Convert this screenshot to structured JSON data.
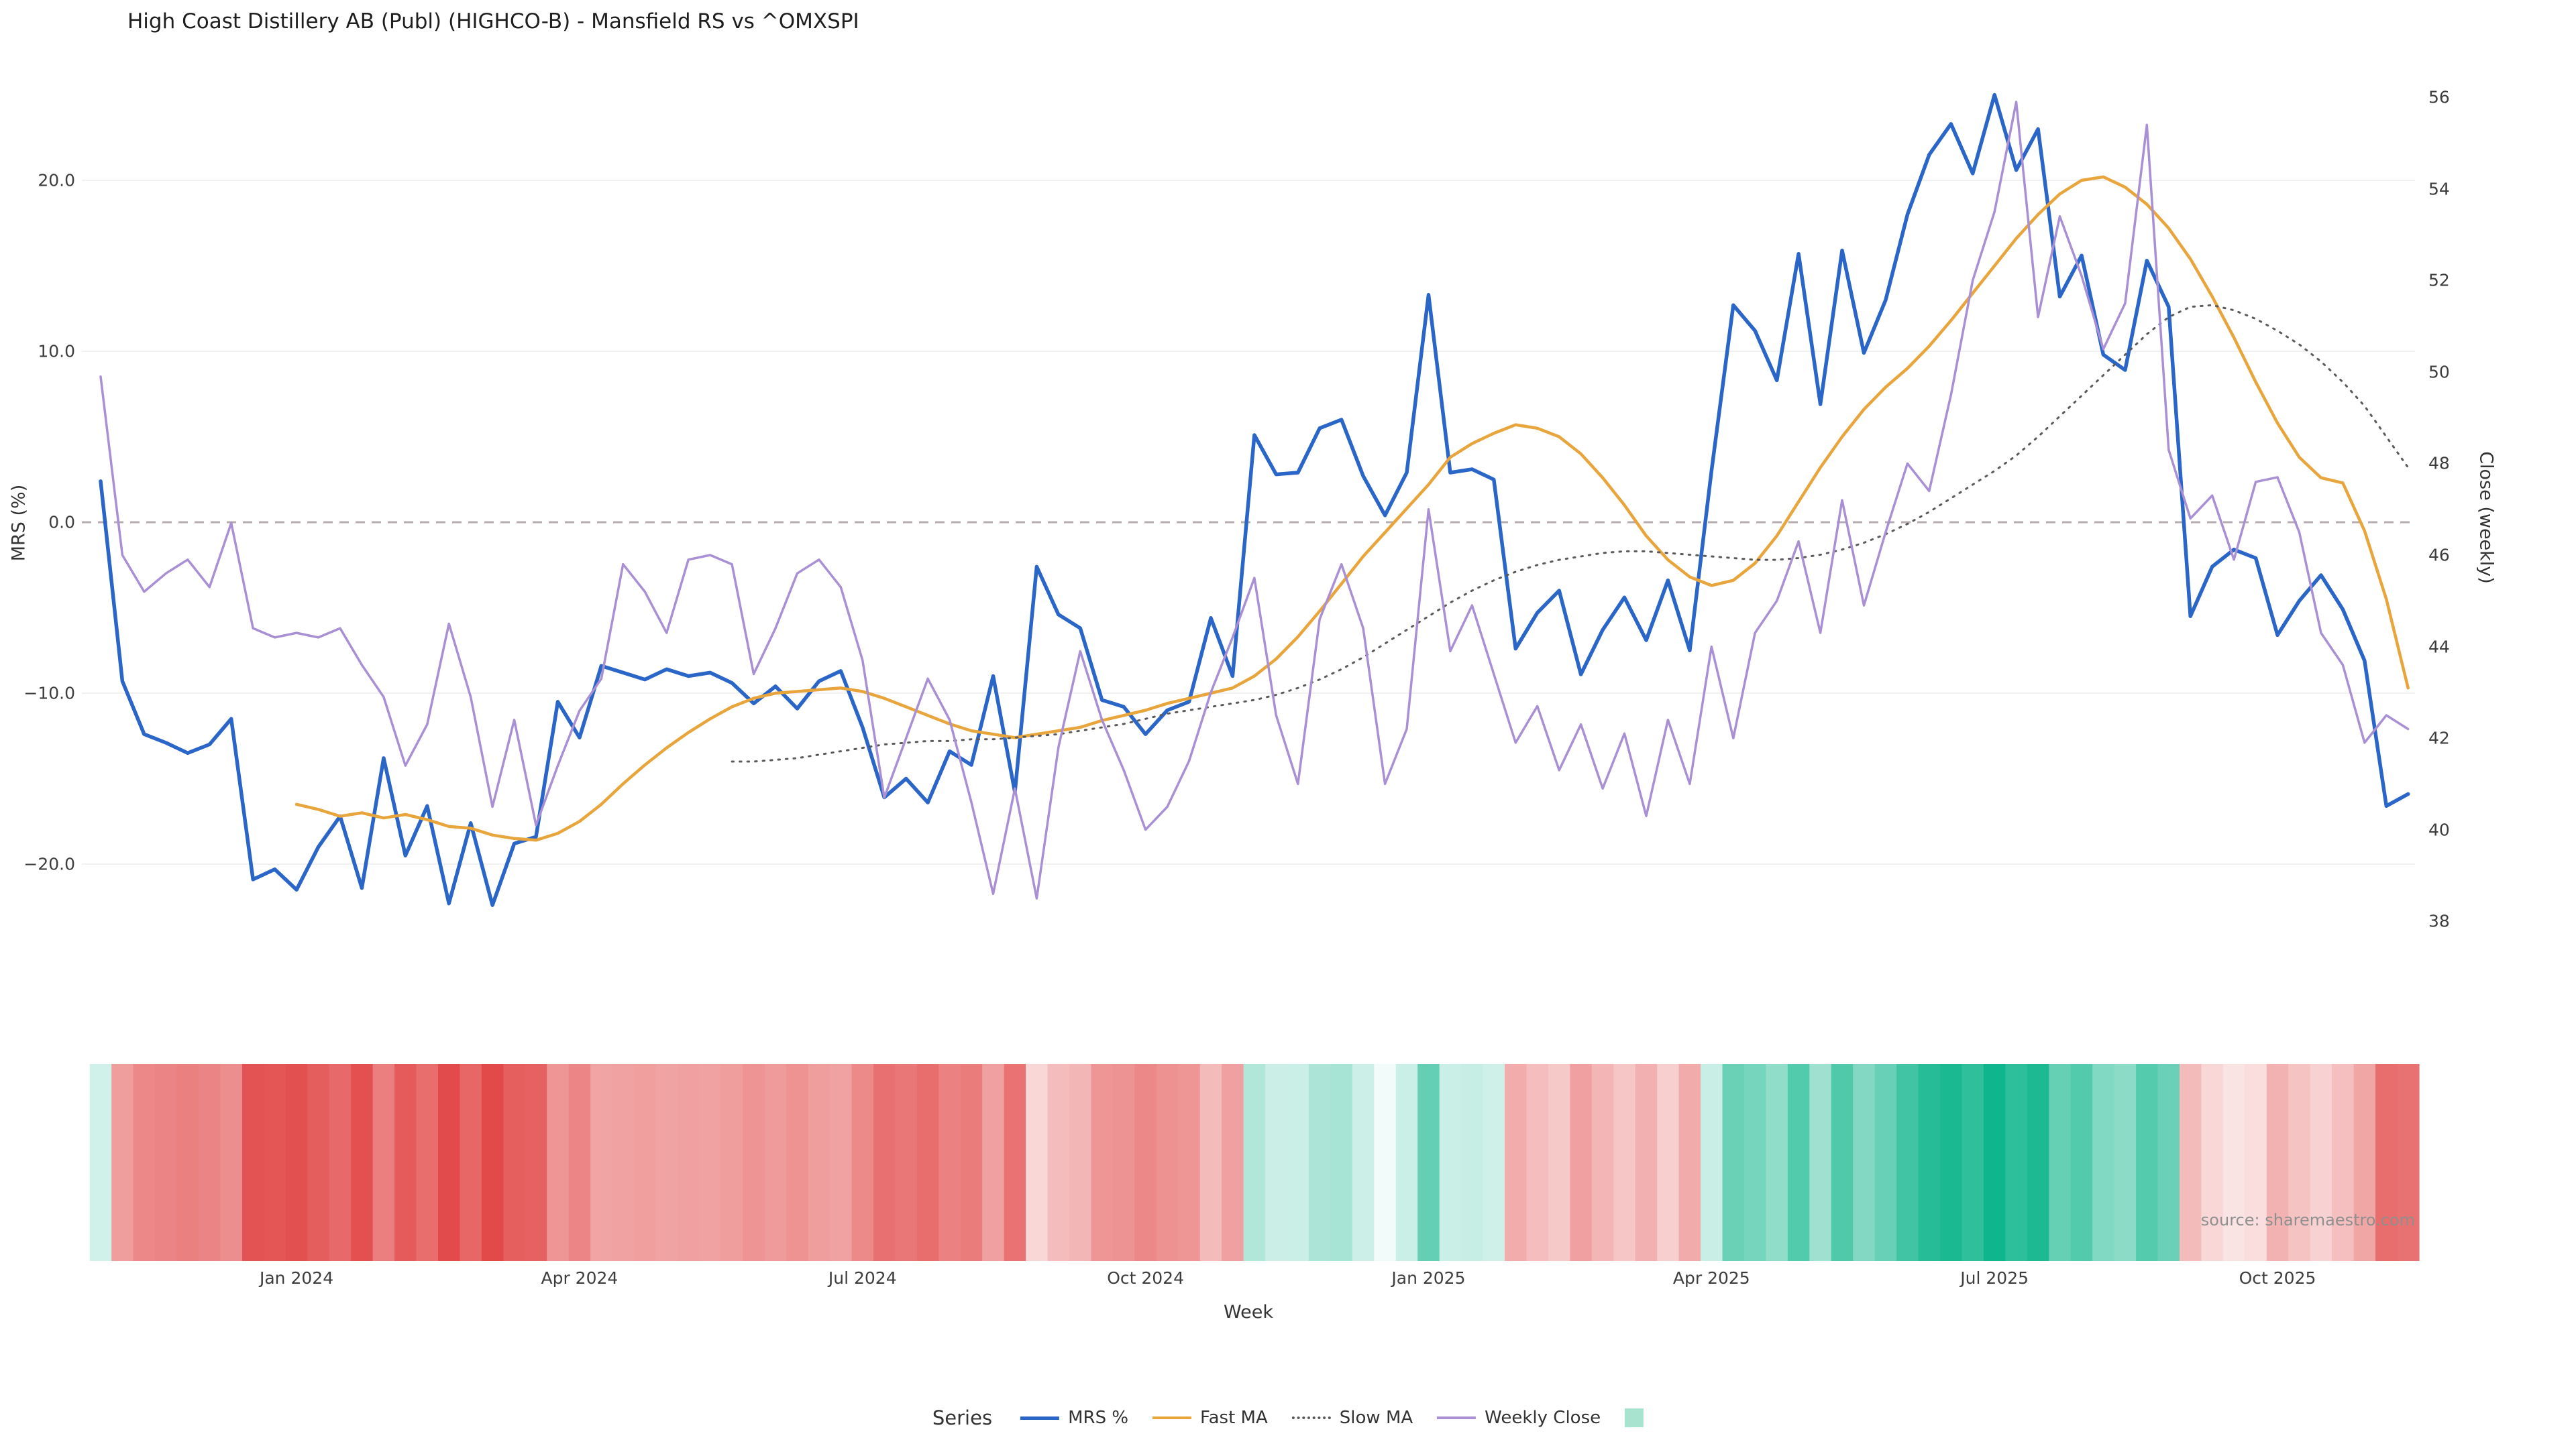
{
  "title": "High Coast Distillery AB (Publ) (HIGHCO-B) - Mansfield RS vs ^OMXSPI",
  "source_note": "source: sharemaestro.com",
  "legend": {
    "label": "Series"
  },
  "chart_data": {
    "type": "line",
    "title": "High Coast Distillery AB (Publ) (HIGHCO-B) - Mansfield RS vs ^OMXSPI",
    "x_axis": {
      "title": "Week",
      "unit": "weekly",
      "ticks": [
        {
          "label": "Jan 2024",
          "week": 9
        },
        {
          "label": "Apr 2024",
          "week": 22
        },
        {
          "label": "Jul 2024",
          "week": 35
        },
        {
          "label": "Oct 2024",
          "week": 48
        },
        {
          "label": "Jan 2025",
          "week": 61
        },
        {
          "label": "Apr 2025",
          "week": 74
        },
        {
          "label": "Jul 2025",
          "week": 87
        },
        {
          "label": "Oct 2025",
          "week": 100
        }
      ]
    },
    "y_left": {
      "title": "MRS (%)",
      "range": [
        -26.7,
        26.7
      ],
      "ticks": [
        {
          "label": "20.0",
          "value": 20
        },
        {
          "label": "10.0",
          "value": 10
        },
        {
          "label": "0.0",
          "value": 0
        },
        {
          "label": "−10.0",
          "value": -10
        },
        {
          "label": "−20.0",
          "value": -20
        }
      ]
    },
    "y_right": {
      "title": "Close (weekly)",
      "range": [
        37.6,
        56.7
      ],
      "ticks": [
        {
          "label": "56",
          "value": 56
        },
        {
          "label": "54",
          "value": 54
        },
        {
          "label": "52",
          "value": 52
        },
        {
          "label": "50",
          "value": 50
        },
        {
          "label": "48",
          "value": 48
        },
        {
          "label": "46",
          "value": 46
        },
        {
          "label": "44",
          "value": 44
        },
        {
          "label": "42",
          "value": 42
        },
        {
          "label": "40",
          "value": 40
        },
        {
          "label": "38",
          "value": 38
        }
      ]
    },
    "zero_line": {
      "value": 0,
      "style": "dashed",
      "color": "#b7acb2"
    },
    "grid_color": "#f1f1f1",
    "series": [
      {
        "name": "MRS %",
        "axis": "left",
        "color": "#2a65c8",
        "line_style": "solid",
        "line_width": 5.5,
        "values": [
          2.4,
          -9.3,
          -12.4,
          -12.9,
          -13.5,
          -13.0,
          -11.5,
          -20.9,
          -20.3,
          -21.5,
          -19.0,
          -17.2,
          -21.4,
          -13.8,
          -19.5,
          -16.6,
          -22.3,
          -17.6,
          -22.4,
          -18.8,
          -18.4,
          -10.5,
          -12.6,
          -8.4,
          -8.8,
          -9.2,
          -8.6,
          -9.0,
          -8.8,
          -9.4,
          -10.6,
          -9.6,
          -10.9,
          -9.3,
          -8.7,
          -12.0,
          -16.1,
          -15.0,
          -16.4,
          -13.4,
          -14.2,
          -9.0,
          -15.8,
          -2.6,
          -5.4,
          -6.2,
          -10.4,
          -10.8,
          -12.4,
          -11.0,
          -10.5,
          -5.6,
          -9.0,
          5.1,
          2.8,
          2.9,
          5.5,
          6.0,
          2.7,
          0.4,
          2.9,
          13.3,
          2.9,
          3.1,
          2.5,
          -7.4,
          -5.3,
          -4.0,
          -8.9,
          -6.3,
          -4.4,
          -6.9,
          -3.4,
          -7.5,
          3.0,
          12.7,
          11.2,
          8.3,
          15.7,
          6.9,
          15.9,
          9.9,
          13.0,
          18.0,
          21.5,
          23.3,
          20.4,
          25.0,
          20.6,
          23.0,
          13.2,
          15.6,
          9.8,
          8.9,
          15.3,
          12.6,
          -5.5,
          -2.6,
          -1.6,
          -2.1,
          -6.6,
          -4.6,
          -3.1,
          -5.1,
          -8.1,
          -16.6,
          -15.9
        ]
      },
      {
        "name": "Fast MA",
        "axis": "left",
        "color": "#e8a53c",
        "line_style": "solid",
        "line_width": 4.5,
        "values": [
          null,
          null,
          null,
          null,
          null,
          null,
          null,
          null,
          null,
          -16.5,
          -16.8,
          -17.2,
          -17.0,
          -17.3,
          -17.1,
          -17.4,
          -17.8,
          -17.9,
          -18.3,
          -18.5,
          -18.6,
          -18.2,
          -17.5,
          -16.5,
          -15.3,
          -14.2,
          -13.2,
          -12.3,
          -11.5,
          -10.8,
          -10.3,
          -10.0,
          -9.9,
          -9.8,
          -9.7,
          -9.9,
          -10.3,
          -10.8,
          -11.3,
          -11.8,
          -12.2,
          -12.4,
          -12.6,
          -12.4,
          -12.2,
          -12.0,
          -11.6,
          -11.3,
          -11.0,
          -10.6,
          -10.3,
          -10.0,
          -9.7,
          -9.0,
          -8.0,
          -6.7,
          -5.2,
          -3.6,
          -2.0,
          -0.6,
          0.8,
          2.2,
          3.8,
          4.6,
          5.2,
          5.7,
          5.5,
          5.0,
          4.0,
          2.6,
          1.0,
          -0.8,
          -2.2,
          -3.2,
          -3.7,
          -3.4,
          -2.4,
          -0.8,
          1.2,
          3.2,
          5.0,
          6.6,
          7.9,
          9.0,
          10.3,
          11.8,
          13.4,
          15.0,
          16.6,
          18.0,
          19.2,
          20.0,
          20.2,
          19.6,
          18.6,
          17.2,
          15.4,
          13.2,
          10.8,
          8.2,
          5.8,
          3.8,
          2.6,
          2.3,
          -0.5,
          -4.5,
          -9.7
        ]
      },
      {
        "name": "Slow MA",
        "axis": "left",
        "color": "#5a5a5a",
        "line_style": "dotted",
        "line_width": 3,
        "values": [
          null,
          null,
          null,
          null,
          null,
          null,
          null,
          null,
          null,
          null,
          null,
          null,
          null,
          null,
          null,
          null,
          null,
          null,
          null,
          null,
          null,
          null,
          null,
          null,
          null,
          null,
          null,
          null,
          null,
          -14.0,
          -14.0,
          -13.9,
          -13.8,
          -13.6,
          -13.4,
          -13.2,
          -13.0,
          -12.9,
          -12.8,
          -12.8,
          -12.7,
          -12.7,
          -12.6,
          -12.5,
          -12.4,
          -12.2,
          -12.0,
          -11.8,
          -11.5,
          -11.2,
          -11.0,
          -10.8,
          -10.6,
          -10.4,
          -10.1,
          -9.7,
          -9.2,
          -8.6,
          -7.9,
          -7.1,
          -6.3,
          -5.5,
          -4.7,
          -4.0,
          -3.4,
          -2.9,
          -2.5,
          -2.2,
          -2.0,
          -1.8,
          -1.7,
          -1.7,
          -1.8,
          -1.9,
          -2.0,
          -2.1,
          -2.2,
          -2.2,
          -2.1,
          -1.9,
          -1.6,
          -1.2,
          -0.7,
          -0.1,
          0.6,
          1.4,
          2.2,
          3.0,
          3.9,
          5.0,
          6.2,
          7.4,
          8.6,
          9.8,
          11.0,
          12.0,
          12.6,
          12.7,
          12.4,
          11.9,
          11.2,
          10.4,
          9.4,
          8.2,
          6.8,
          5.0,
          3.2
        ]
      },
      {
        "name": "Weekly Close",
        "axis": "right",
        "color": "#a98fd4",
        "line_style": "solid",
        "line_width": 3.5,
        "values": [
          49.9,
          46.0,
          45.2,
          45.6,
          45.9,
          45.3,
          46.7,
          44.4,
          44.2,
          44.3,
          44.2,
          44.4,
          43.6,
          42.9,
          41.4,
          42.3,
          44.5,
          42.9,
          40.5,
          42.4,
          40.1,
          41.4,
          42.6,
          43.3,
          45.8,
          45.2,
          44.3,
          45.9,
          46.0,
          45.8,
          43.4,
          44.4,
          45.6,
          45.9,
          45.3,
          43.7,
          40.7,
          42.0,
          43.3,
          42.4,
          40.6,
          38.6,
          40.9,
          38.5,
          41.8,
          43.9,
          42.4,
          41.3,
          40.0,
          40.5,
          41.5,
          43.0,
          44.2,
          45.5,
          42.5,
          41.0,
          44.6,
          45.8,
          44.4,
          41.0,
          42.2,
          47.0,
          43.9,
          44.9,
          43.4,
          41.9,
          42.7,
          41.3,
          42.3,
          40.9,
          42.1,
          40.3,
          42.4,
          41.0,
          44.0,
          42.0,
          44.3,
          45.0,
          46.3,
          44.3,
          47.2,
          44.9,
          46.5,
          48.0,
          47.4,
          49.5,
          52.0,
          53.5,
          55.9,
          51.2,
          53.4,
          52.1,
          50.5,
          51.5,
          55.4,
          48.3,
          46.8,
          47.3,
          45.9,
          47.6,
          47.7,
          46.5,
          44.3,
          43.6,
          41.9,
          42.5,
          42.2
        ]
      }
    ],
    "heatmap": {
      "source_series": "MRS %",
      "scale_abs_max": 25,
      "negative_color": "#e03c3c",
      "positive_color": "#0fb58c",
      "legend_swatch_color": "#a7e3cf"
    }
  }
}
